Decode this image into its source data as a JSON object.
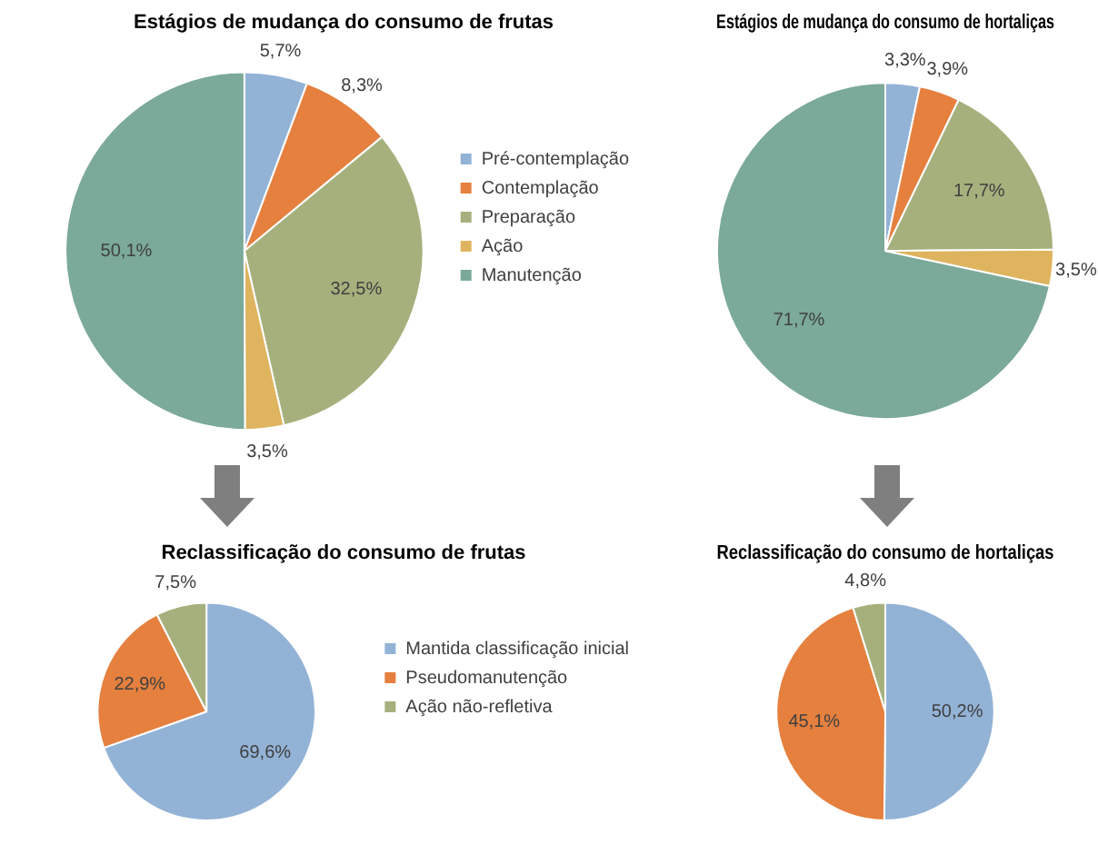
{
  "chart_data": [
    {
      "type": "pie",
      "title": "Estágios de mudança do consumo de frutas",
      "categories": [
        "Pré-contemplação",
        "Contemplação",
        "Preparação",
        "Ação",
        "Manutenção"
      ],
      "values": [
        5.7,
        8.3,
        32.5,
        3.5,
        50.1
      ],
      "value_labels": [
        "5,7%",
        "8,3%",
        "32,5%",
        "3,5%",
        "50,1%"
      ],
      "colors": [
        "#93b3d6",
        "#e5803f",
        "#a6b07d",
        "#dfb45f",
        "#7ba99a"
      ],
      "legend": "right"
    },
    {
      "type": "pie",
      "title": "Estágios de mudança do consumo de hortaliças",
      "categories": [
        null,
        null,
        null,
        null,
        null
      ],
      "values": [
        3.3,
        3.9,
        17.7,
        3.5,
        71.7
      ],
      "value_labels": [
        "3,3%",
        "3,9%",
        "17,7%",
        "3,5%",
        "71,7%"
      ],
      "colors": [
        "#93b3d6",
        "#e5803f",
        "#a6b07d",
        "#dfb45f",
        "#7ba99a"
      ],
      "legend": false
    },
    {
      "type": "pie",
      "title": "Reclassificação do consumo de frutas",
      "categories": [
        "Mantida classificação inicial",
        "Pseudomanutenção",
        "Ação não-refletiva"
      ],
      "values": [
        69.6,
        22.9,
        7.5
      ],
      "value_labels": [
        "69,6%",
        "22,9%",
        "7,5%"
      ],
      "colors": [
        "#93b3d6",
        "#e5803f",
        "#a6b07d"
      ],
      "legend": "right"
    },
    {
      "type": "pie",
      "title": "Reclassificação do consumo de hortaliças",
      "categories": [
        null,
        null,
        null
      ],
      "values": [
        50.2,
        45.1,
        4.8
      ],
      "value_labels": [
        "50,2%",
        "45,1%",
        "4,8%"
      ],
      "colors": [
        "#93b3d6",
        "#e5803f",
        "#a6b07d"
      ],
      "legend": false
    }
  ]
}
